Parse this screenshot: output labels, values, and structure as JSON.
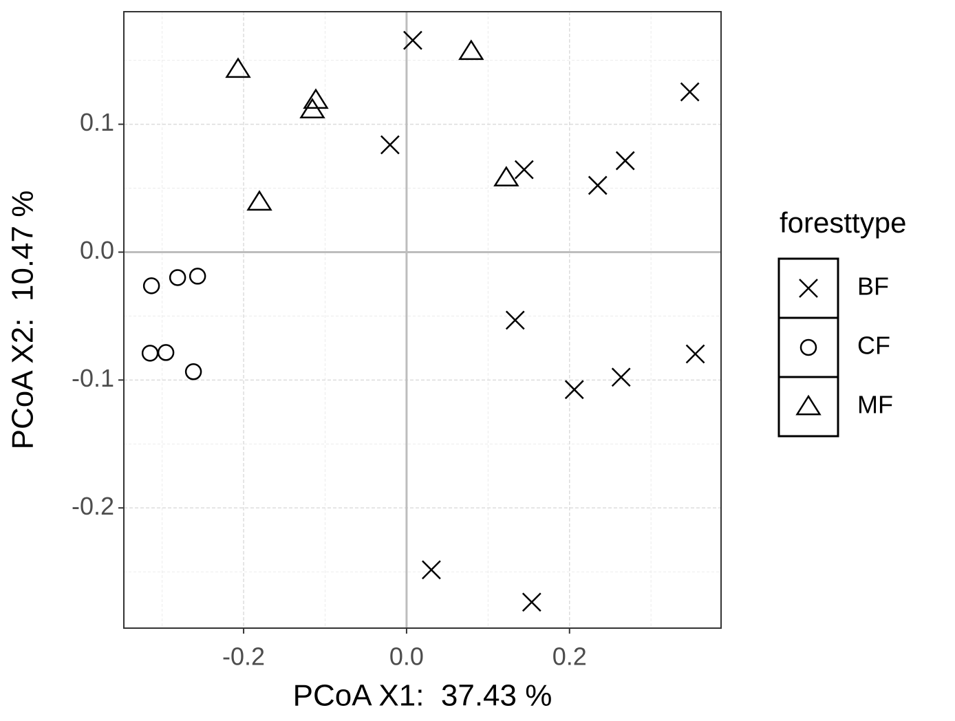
{
  "chart_data": {
    "type": "scatter",
    "x_label": "PCoA X1:  37.43 %",
    "y_label": "PCoA X2:  10.47 %",
    "xlim": [
      -0.347,
      0.386
    ],
    "ylim": [
      -0.294,
      0.188
    ],
    "xticks": [
      -0.2,
      {
        "value": 0,
        "label": "0.0"
      },
      0.2
    ],
    "yticks": [
      -0.2,
      -0.1,
      {
        "value": 0,
        "label": "0.0"
      },
      0.1
    ],
    "minor_xticks": [
      -0.3,
      -0.1,
      0.1,
      0.3
    ],
    "minor_yticks": [
      -0.25,
      -0.15,
      -0.05,
      0.05,
      0.15
    ],
    "grid": true,
    "zero_lines": true,
    "legend_title": "foresttype",
    "legend_position": "right",
    "series": [
      {
        "name": "BF",
        "marker": "cross",
        "color": "#000000",
        "x": [
          0.0076,
          0.3477,
          -0.0203,
          0.1443,
          0.2684,
          0.2346,
          0.1333,
          0.3544,
          0.2633,
          0.2059,
          0.0304,
          0.1536
        ],
        "values": [
          0.1656,
          0.1253,
          0.0839,
          0.0645,
          0.0715,
          0.0522,
          -0.0532,
          -0.0796,
          -0.0978,
          -0.1075,
          -0.2484,
          -0.2737
        ]
      },
      {
        "name": "CF",
        "marker": "circle",
        "color": "#000000",
        "x": [
          -0.3131,
          -0.281,
          -0.2565,
          -0.3148,
          -0.2954,
          -0.2616
        ],
        "values": [
          -0.0263,
          -0.0199,
          -0.0188,
          -0.079,
          -0.0785,
          -0.0935
        ]
      },
      {
        "name": "MF",
        "marker": "triangle",
        "color": "#000000",
        "x": [
          -0.2068,
          0.0793,
          -0.1114,
          -0.1156,
          -0.1806,
          0.1224
        ],
        "values": [
          0.143,
          0.157,
          0.1188,
          0.1113,
          0.0392,
          0.0581
        ]
      }
    ]
  }
}
